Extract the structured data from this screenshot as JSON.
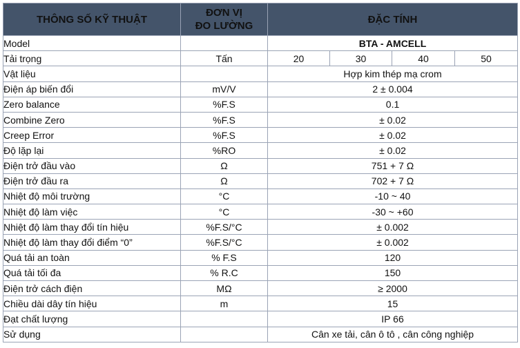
{
  "header": {
    "col_param": "THÔNG SỐ KỸ THUẬT",
    "col_unit_line1": "ĐƠN VỊ",
    "col_unit_line2": "ĐO LƯỜNG",
    "col_spec": "ĐẶC TÍNH"
  },
  "model": {
    "label": "Model",
    "unit": "",
    "value": "BTA - AMCELL"
  },
  "load": {
    "label": "Tải trọng",
    "unit": "Tấn",
    "values": [
      "20",
      "30",
      "40",
      "50"
    ]
  },
  "rows": [
    {
      "label": "Vật liệu",
      "unit": "",
      "value": "Hợp kim thép mạ crom"
    },
    {
      "label": "Điện áp biến đổi",
      "unit": "mV/V",
      "value": "2 ± 0.004"
    },
    {
      "label": "Zero balance",
      "unit": "%F.S",
      "value": "0.1"
    },
    {
      "label": "Combine Zero",
      "unit": "%F.S",
      "value": "± 0.02"
    },
    {
      "label": "Creep Error",
      "unit": "%F.S",
      "value": "± 0.02"
    },
    {
      "label": "Độ lặp lại",
      "unit": "%RO",
      "value": "± 0.02"
    },
    {
      "label": "Điện trở đầu vào",
      "unit": "Ω",
      "value": "751 + 7 Ω"
    },
    {
      "label": "Điện trở đầu ra",
      "unit": "Ω",
      "value": "702 + 7 Ω"
    },
    {
      "label": "Nhiệt độ môi trường",
      "unit": "°C",
      "value": "-10 ~ 40"
    },
    {
      "label": "Nhiệt độ làm việc",
      "unit": "°C",
      "value": "-30 ~ +60"
    },
    {
      "label": "Nhiệt độ làm thay đổi tín hiệu",
      "unit": "%F.S/°C",
      "value": "± 0.002"
    },
    {
      "label": "Nhiệt độ làm thay đổi điểm “0”",
      "unit": "%F.S/°C",
      "value": "± 0.002"
    },
    {
      "label": "Quá tải an toàn",
      "unit": "% F.S",
      "value": "120"
    },
    {
      "label": "Quá tải tối đa",
      "unit": "% R.C",
      "value": "150"
    },
    {
      "label": "Điện trở cách điện",
      "unit": "MΩ",
      "value": "≥ 2000"
    },
    {
      "label": "Chiều dài dây tín hiệu",
      "unit": "m",
      "value": "15"
    },
    {
      "label": "Đạt chất lượng",
      "unit": "",
      "value": "IP 66"
    },
    {
      "label": "Sử dụng",
      "unit": "",
      "value": "Cân xe tải, cân ô tô ,  cân công nghiệp"
    }
  ],
  "colors": {
    "header_bg": "#44546a",
    "header_text": "#ffffff",
    "border": "#9aa3b5"
  }
}
